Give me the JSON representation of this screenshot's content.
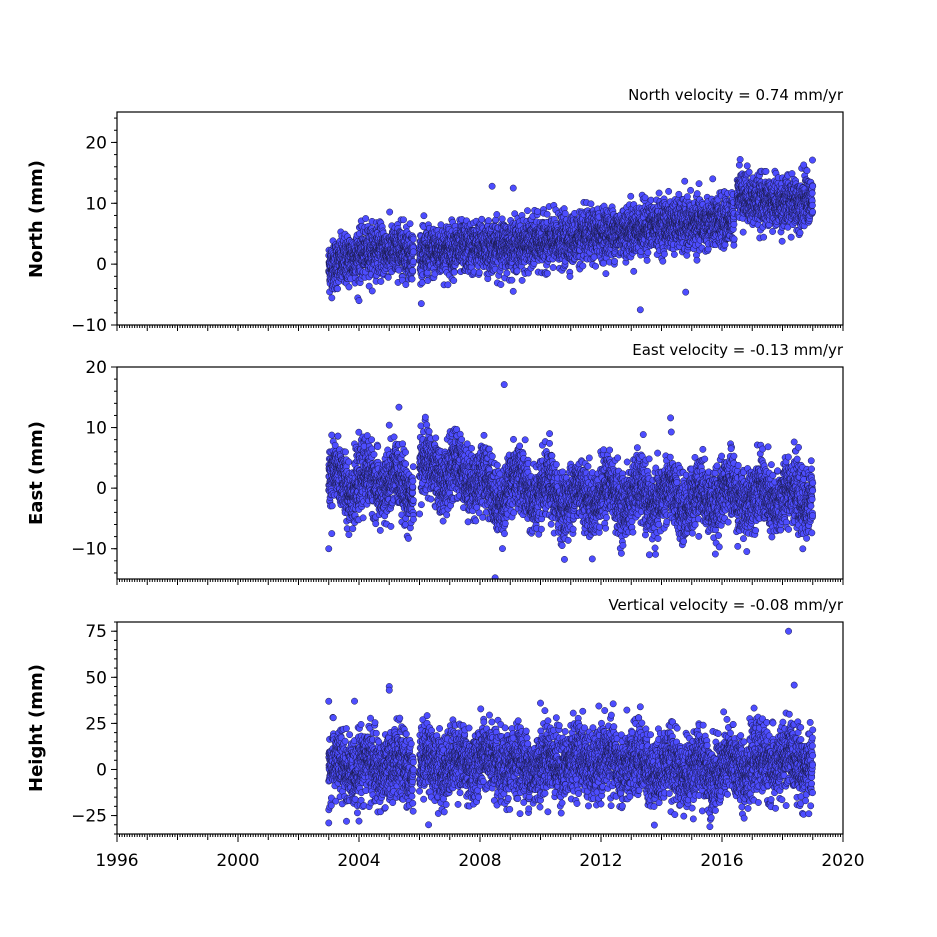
{
  "chart_data": [
    {
      "type": "scatter",
      "title": "North velocity = 0.74 mm/yr",
      "ylabel": "North (mm)",
      "xlim": [
        1996,
        2020
      ],
      "ylim": [
        -10,
        25
      ],
      "yticks": [
        -10,
        0,
        10,
        20
      ],
      "ytick_labels": [
        "−10",
        "0",
        "10",
        "20"
      ],
      "series": [
        {
          "marker_color": "#4d4dff",
          "segments": [
            {
              "x_start": 2003.0,
              "x_end": 2005.8,
              "values": [
                [
                  2003.0,
                  -0.5
                ],
                [
                  2003.5,
                  0.5
                ],
                [
                  2004.0,
                  1.5
                ],
                [
                  2004.5,
                  2.5
                ],
                [
                  2005.0,
                  2.0
                ],
                [
                  2005.5,
                  2.5
                ],
                [
                  2005.8,
                  1.5
                ]
              ]
            },
            {
              "x_start": 2006.0,
              "x_end": 2016.4,
              "values": [
                [
                  2006.0,
                  1.5
                ],
                [
                  2007.0,
                  2.5
                ],
                [
                  2008.0,
                  2.8
                ],
                [
                  2009.0,
                  3.0
                ],
                [
                  2010.0,
                  3.5
                ],
                [
                  2011.0,
                  4.0
                ],
                [
                  2012.0,
                  5.0
                ],
                [
                  2013.0,
                  5.5
                ],
                [
                  2014.0,
                  6.5
                ],
                [
                  2015.0,
                  6.5
                ],
                [
                  2016.0,
                  7.0
                ],
                [
                  2016.4,
                  7.5
                ]
              ]
            },
            {
              "x_start": 2016.5,
              "x_end": 2019.0,
              "values": [
                [
                  2016.5,
                  12.0
                ],
                [
                  2017.0,
                  10.5
                ],
                [
                  2018.0,
                  10.0
                ],
                [
                  2019.0,
                  10.5
                ]
              ]
            }
          ],
          "outliers": [
            [
              2004.0,
              -6.0
            ],
            [
              2008.4,
              12.8
            ],
            [
              2009.1,
              12.5
            ],
            [
              2013.3,
              -7.5
            ],
            [
              2014.8,
              -4.6
            ],
            [
              2016.6,
              17.2
            ],
            [
              2018.7,
              16.3
            ]
          ]
        }
      ]
    },
    {
      "type": "scatter",
      "title": "East velocity = -0.13 mm/yr",
      "ylabel": "East (mm)",
      "xlim": [
        1996,
        2020
      ],
      "ylim": [
        -15,
        20
      ],
      "yticks": [
        -10,
        0,
        10,
        20
      ],
      "ytick_labels": [
        "−10",
        "0",
        "10",
        "20"
      ],
      "series": [
        {
          "marker_color": "#4d4dff",
          "segments": [
            {
              "x_start": 2003.0,
              "x_end": 2005.8,
              "values": [
                [
                  2003.0,
                  1.0
                ],
                [
                  2004.0,
                  1.0
                ],
                [
                  2005.0,
                  1.0
                ],
                [
                  2005.8,
                  0.0
                ]
              ]
            },
            {
              "x_start": 2006.0,
              "x_end": 2019.0,
              "values": [
                [
                  2006.0,
                  3.0
                ],
                [
                  2007.0,
                  2.5
                ],
                [
                  2008.0,
                  2.0
                ],
                [
                  2008.5,
                  -2.0
                ],
                [
                  2009.0,
                  1.0
                ],
                [
                  2010.0,
                  -1.0
                ],
                [
                  2011.0,
                  -1.5
                ],
                [
                  2012.0,
                  -1.0
                ],
                [
                  2013.0,
                  -1.5
                ],
                [
                  2014.0,
                  -1.5
                ],
                [
                  2015.0,
                  -2.0
                ],
                [
                  2016.0,
                  -1.0
                ],
                [
                  2017.0,
                  -1.5
                ],
                [
                  2018.0,
                  -1.5
                ],
                [
                  2019.0,
                  -1.0
                ]
              ]
            }
          ],
          "outliers": [
            [
              2003.0,
              -10.0
            ],
            [
              2003.1,
              -7.5
            ],
            [
              2005.0,
              10.4
            ],
            [
              2008.5,
              -14.8
            ],
            [
              2008.8,
              17.1
            ],
            [
              2010.3,
              9.0
            ],
            [
              2013.6,
              -11.0
            ],
            [
              2014.3,
              11.6
            ],
            [
              2016.3,
              6.5
            ]
          ]
        }
      ]
    },
    {
      "type": "scatter",
      "title": "Vertical velocity = -0.08 mm/yr",
      "ylabel": "Height (mm)",
      "xlim": [
        1996,
        2020
      ],
      "ylim": [
        -35,
        80
      ],
      "yticks": [
        -25,
        0,
        25,
        50,
        75
      ],
      "ytick_labels": [
        "−25",
        "0",
        "25",
        "50",
        "75"
      ],
      "xticks": [
        1996,
        2000,
        2004,
        2008,
        2012,
        2016,
        2020
      ],
      "xtick_labels": [
        "1996",
        "2000",
        "2004",
        "2008",
        "2012",
        "2016",
        "2020"
      ],
      "series": [
        {
          "marker_color": "#4d4dff",
          "segments": [
            {
              "x_start": 2003.0,
              "x_end": 2005.8,
              "values": [
                [
                  2003.0,
                  0.0
                ],
                [
                  2004.0,
                  2.0
                ],
                [
                  2005.0,
                  1.0
                ],
                [
                  2005.8,
                  2.0
                ]
              ]
            },
            {
              "x_start": 2006.0,
              "x_end": 2019.0,
              "values": [
                [
                  2006.0,
                  4.0
                ],
                [
                  2007.0,
                  3.0
                ],
                [
                  2008.0,
                  5.0
                ],
                [
                  2009.0,
                  2.0
                ],
                [
                  2010.0,
                  3.0
                ],
                [
                  2011.0,
                  5.0
                ],
                [
                  2012.0,
                  4.0
                ],
                [
                  2013.0,
                  3.0
                ],
                [
                  2014.0,
                  1.0
                ],
                [
                  2015.0,
                  0.0
                ],
                [
                  2016.0,
                  0.0
                ],
                [
                  2017.0,
                  3.0
                ],
                [
                  2018.0,
                  5.0
                ],
                [
                  2019.0,
                  4.0
                ]
              ]
            }
          ],
          "outliers": [
            [
              2003.0,
              37.0
            ],
            [
              2005.0,
              45.0
            ],
            [
              2005.0,
              43.0
            ],
            [
              2003.0,
              -29.0
            ],
            [
              2004.0,
              -28.0
            ],
            [
              2006.3,
              -30.0
            ],
            [
              2013.3,
              34.0
            ],
            [
              2015.6,
              -31.0
            ],
            [
              2018.2,
              75.0
            ],
            [
              2010.0,
              36.0
            ]
          ]
        }
      ]
    }
  ]
}
